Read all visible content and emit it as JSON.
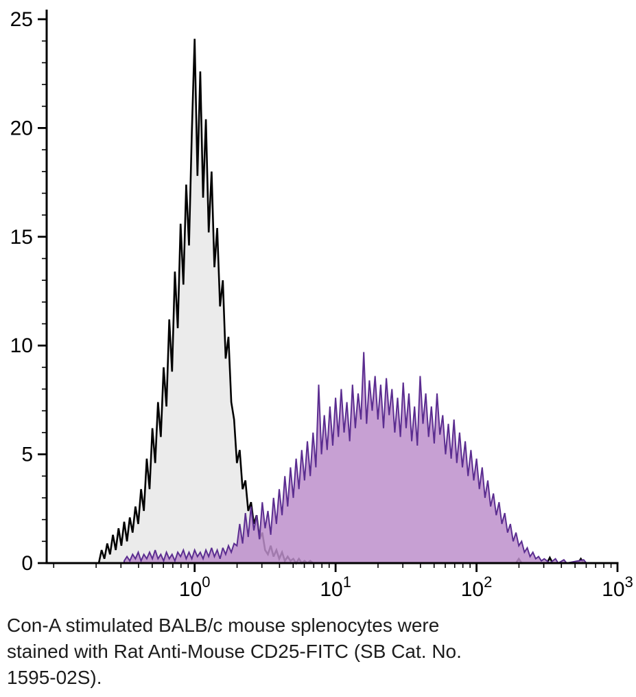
{
  "page": {
    "background": "#ffffff"
  },
  "caption": {
    "lines": [
      "Con-A stimulated BALB/c mouse splenocytes were",
      "stained with Rat Anti-Mouse CD25-FITC (SB Cat. No.",
      "1595-02S)."
    ]
  },
  "chart_data": {
    "type": "area",
    "subtype": "flow-cytometry-histogram-overlay",
    "title": "",
    "xlabel": "",
    "ylabel": "",
    "x_scale": "log10",
    "x_log_min": -1.05,
    "x_log_max": 3,
    "ylim": [
      0,
      25
    ],
    "grid": false,
    "legend": "none",
    "axis_color": "#000000",
    "y_major_ticks": [
      0,
      5,
      10,
      15,
      20,
      25
    ],
    "y_minor_step": 1,
    "x_major_tick_labels": [
      {
        "log": 0,
        "label": "10^0"
      },
      {
        "log": 1,
        "label": "10^1"
      },
      {
        "log": 2,
        "label": "10^2"
      },
      {
        "log": 3,
        "label": "10^3"
      }
    ],
    "x_minor_decades": [
      -1,
      0,
      1,
      2
    ],
    "series": [
      {
        "id": "black",
        "name": "black open histogram (control)",
        "stroke": "#000000",
        "stroke_width": 2.6,
        "fill": "#ebebeb",
        "fill_opacity": 1,
        "log_start": -0.68,
        "log_step": 0.02,
        "values": [
          0,
          0.6,
          0.2,
          0.9,
          0.4,
          1.3,
          0.6,
          1.6,
          0.8,
          1.9,
          1.0,
          2.1,
          1.4,
          2.6,
          1.8,
          3.4,
          2.4,
          4.8,
          3.4,
          6.2,
          4.6,
          7.4,
          5.8,
          9.0,
          7.2,
          11.2,
          8.8,
          13.4,
          10.8,
          15.6,
          12.8,
          17.4,
          14.6,
          19.8,
          24.1,
          17.8,
          22.6,
          16.8,
          20.4,
          15.2,
          18.0,
          13.6,
          15.4,
          11.8,
          13.0,
          9.4,
          10.4,
          7.4,
          6.6,
          4.6,
          5.2,
          3.4,
          3.8,
          2.4,
          2.8,
          1.8,
          2.2,
          1.1,
          1.4,
          0.6,
          0.4,
          0.8,
          0.3,
          0.6,
          0.2,
          0.5,
          0.1,
          0.3,
          0.1,
          0.2,
          0,
          0.2,
          0,
          0.1,
          0,
          0.1,
          0
        ],
        "extra_points": [
          [
            2.28,
            0
          ],
          [
            2.3,
            0.2
          ],
          [
            2.32,
            0
          ],
          [
            2.5,
            0
          ],
          [
            2.52,
            0.25
          ],
          [
            2.54,
            0
          ],
          [
            2.72,
            0
          ],
          [
            2.74,
            0.2
          ],
          [
            2.76,
            0
          ],
          [
            2.8,
            0
          ]
        ]
      },
      {
        "id": "purple",
        "name": "purple filled histogram (CD25-FITC stained)",
        "stroke": "#5b2d90",
        "stroke_width": 2.0,
        "fill": "#bd8fcb",
        "fill_opacity": 0.85,
        "log_start": -0.5,
        "log_step": 0.02,
        "values": [
          0.1,
          0.3,
          0.1,
          0.4,
          0.2,
          0.5,
          0.1,
          0.4,
          0.2,
          0.5,
          0.2,
          0.6,
          0.2,
          0.4,
          0.1,
          0.5,
          0.2,
          0.4,
          0.1,
          0.5,
          0.3,
          0.6,
          0.2,
          0.5,
          0.2,
          0.6,
          0.3,
          0.5,
          0.2,
          0.6,
          0.3,
          0.7,
          0.3,
          0.6,
          0.2,
          0.7,
          0.4,
          0.8,
          0.5,
          0.9,
          0.8,
          1.8,
          0.9,
          2.3,
          1.2,
          2.6,
          1.5,
          2.2,
          1.1,
          2.8,
          1.6,
          2.4,
          1.3,
          3.0,
          1.8,
          3.4,
          2.2,
          4.0,
          2.6,
          4.4,
          3.0,
          4.8,
          3.4,
          5.2,
          3.8,
          5.6,
          4.0,
          6.0,
          4.4,
          8.2,
          5.0,
          6.8,
          5.2,
          7.2,
          5.4,
          7.6,
          5.8,
          8.0,
          6.0,
          7.4,
          5.6,
          8.2,
          6.2,
          7.8,
          6.6,
          9.7,
          6.4,
          8.4,
          7.0,
          8.6,
          6.6,
          8.2,
          6.2,
          8.5,
          6.8,
          8.0,
          6.0,
          7.6,
          5.8,
          8.3,
          6.2,
          7.8,
          5.6,
          7.2,
          5.4,
          8.6,
          6.4,
          7.8,
          5.8,
          7.2,
          5.5,
          7.8,
          5.9,
          6.8,
          5.0,
          6.4,
          4.8,
          6.6,
          4.6,
          6.0,
          4.4,
          5.6,
          4.0,
          5.2,
          3.8,
          4.8,
          3.4,
          4.4,
          3.0,
          3.8,
          2.6,
          3.2,
          2.2,
          2.8,
          1.8,
          2.3,
          1.4,
          1.8,
          1.0,
          1.4,
          0.8,
          1.0,
          0.5,
          0.7,
          0.3,
          0.5,
          0.2,
          0.3,
          0.1,
          0.2,
          0.1
        ],
        "extra_points": [
          [
            2.52,
            0
          ],
          [
            2.56,
            0.2
          ],
          [
            2.58,
            0
          ],
          [
            2.62,
            0.15
          ],
          [
            2.64,
            0
          ],
          [
            2.76,
            0.15
          ],
          [
            2.78,
            0
          ],
          [
            2.8,
            0
          ]
        ]
      }
    ]
  }
}
